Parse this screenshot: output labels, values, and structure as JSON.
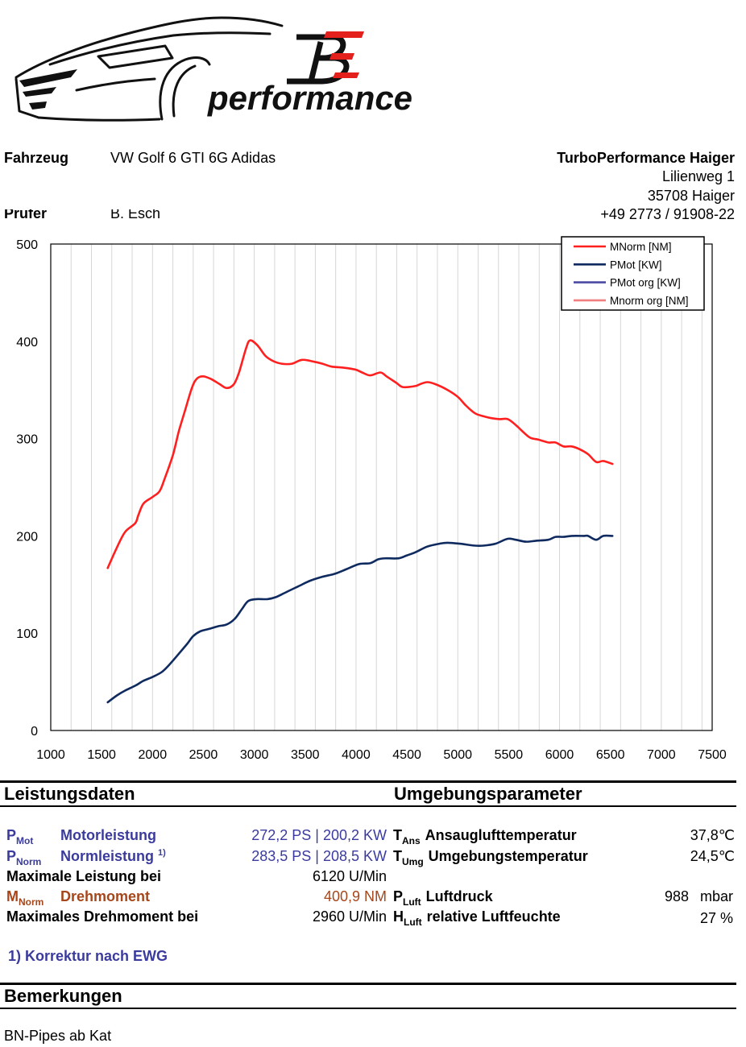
{
  "logo": {
    "mark": "BE",
    "wordmark": "performance",
    "mark_color": "#111111",
    "accent_color": "#e3201b"
  },
  "vehicle": {
    "label": "Fahrzeug",
    "value": "VW Golf 6 GTI 6G Adidas"
  },
  "tester": {
    "label": "Prüfer",
    "value": "B. Esch"
  },
  "company": {
    "name": "TurboPerformance Haiger",
    "street": "Lilienweg 1",
    "city": "35708 Haiger",
    "phone": "+49 2773 / 91908-22"
  },
  "chart_data": {
    "type": "line",
    "x_ticks": [
      1000,
      1500,
      2000,
      2500,
      3000,
      3500,
      4000,
      4500,
      5000,
      5500,
      6000,
      6500,
      7000,
      7500
    ],
    "y_ticks": [
      0,
      100,
      200,
      300,
      400,
      500
    ],
    "xlim": [
      1000,
      7500
    ],
    "ylim": [
      0,
      500
    ],
    "grid": {
      "x": true,
      "y": false
    },
    "legend_position": "top-right",
    "series": [
      {
        "name": "MNorm [NM]",
        "color": "#ff1f1f",
        "x": [
          1560,
          1650,
          1730,
          1830,
          1860,
          1910,
          2000,
          2070,
          2120,
          2200,
          2260,
          2320,
          2390,
          2440,
          2500,
          2580,
          2660,
          2730,
          2800,
          2850,
          2920,
          2960,
          3030,
          3110,
          3180,
          3270,
          3370,
          3470,
          3590,
          3670,
          3760,
          3870,
          3990,
          4060,
          4140,
          4240,
          4300,
          4400,
          4460,
          4580,
          4630,
          4700,
          4780,
          4900,
          5000,
          5080,
          5170,
          5250,
          5330,
          5410,
          5490,
          5570,
          5630,
          5710,
          5790,
          5890,
          5960,
          6040,
          6120,
          6200,
          6280,
          6360,
          6430,
          6520
        ],
        "y": [
          167,
          188,
          204,
          213,
          221,
          233,
          240,
          246,
          259,
          283,
          308,
          329,
          353,
          362,
          364,
          361,
          356,
          352,
          356,
          368,
          393,
          401,
          396,
          385,
          380,
          377,
          377,
          381,
          379,
          377,
          374,
          373,
          371,
          368,
          365,
          368,
          364,
          357,
          353,
          354,
          356,
          358,
          356,
          350,
          343,
          334,
          326,
          323,
          321,
          320,
          320,
          314,
          308,
          301,
          299,
          296,
          296,
          292,
          292,
          289,
          284,
          276,
          277,
          274
        ]
      },
      {
        "name": "PMot [KW]",
        "color": "#0f2a5f",
        "x": [
          1560,
          1650,
          1730,
          1830,
          1910,
          2000,
          2090,
          2160,
          2260,
          2340,
          2400,
          2470,
          2540,
          2640,
          2730,
          2810,
          2880,
          2940,
          3020,
          3130,
          3210,
          3310,
          3430,
          3550,
          3670,
          3790,
          3910,
          4030,
          4140,
          4220,
          4300,
          4420,
          4500,
          4580,
          4700,
          4820,
          4900,
          5020,
          5170,
          5250,
          5370,
          5490,
          5570,
          5670,
          5770,
          5890,
          5960,
          6040,
          6120,
          6240,
          6280,
          6360,
          6430,
          6520
        ],
        "y": [
          29,
          36,
          41,
          46,
          51,
          55,
          60,
          67,
          79,
          89,
          97,
          102,
          104,
          107,
          109,
          115,
          125,
          133,
          135,
          135,
          137,
          142,
          148,
          154,
          158,
          161,
          166,
          171,
          172,
          176,
          177,
          177,
          180,
          183,
          189,
          192,
          193,
          192,
          190,
          190,
          192,
          197,
          196,
          194,
          195,
          196,
          199,
          199,
          200,
          200,
          200,
          196,
          200,
          200
        ]
      },
      {
        "name": "PMot org [KW]",
        "color": "#4a4aa3",
        "x": [],
        "y": []
      },
      {
        "name": "Mnorm org [NM]",
        "color": "#f27f7f",
        "x": [],
        "y": []
      }
    ]
  },
  "performance": {
    "title": "Leistungsdaten",
    "motor": {
      "symbol": {
        "main": "P",
        "sub": "Mot"
      },
      "label": "Motorleistung",
      "value": "272,2 PS | 200,2 KW"
    },
    "norm": {
      "symbol": {
        "main": "P",
        "sub": "Norm"
      },
      "label": "Normleistung",
      "note": "1)",
      "value": "283,5 PS | 208,5 KW"
    },
    "max_power": {
      "label": "Maximale Leistung bei",
      "value": "6120 U/Min"
    },
    "torque": {
      "symbol": {
        "main": "M",
        "sub": "Norm"
      },
      "label": "Drehmoment",
      "value": "400,9 NM"
    },
    "max_torque": {
      "label": "Maximales Drehmoment bei",
      "value": "2960 U/Min"
    },
    "footnote": "1) Korrektur nach EWG"
  },
  "environment": {
    "title": "Umgebungsparameter",
    "intake": {
      "symbol": {
        "main": "T",
        "sub": "Ans"
      },
      "label": "Ansauglufttemperatur",
      "value": "37,8℃"
    },
    "ambient": {
      "symbol": {
        "main": "T",
        "sub": "Umg"
      },
      "label": "Umgebungstemperatur",
      "value": "24,5℃"
    },
    "pressure": {
      "symbol": {
        "main": "P",
        "sub": "Luft"
      },
      "label": "Luftdruck",
      "value": "988",
      "unit": "mbar"
    },
    "humidity": {
      "symbol": {
        "main": "H",
        "sub": "Luft"
      },
      "label": "relative Luftfeuchte",
      "value": "27 %"
    }
  },
  "remarks": {
    "title": "Bemerkungen",
    "text": "BN-Pipes ab Kat"
  },
  "colors": {
    "metric_blue": "#3b3b9e",
    "torque_brown": "#a5461b"
  }
}
